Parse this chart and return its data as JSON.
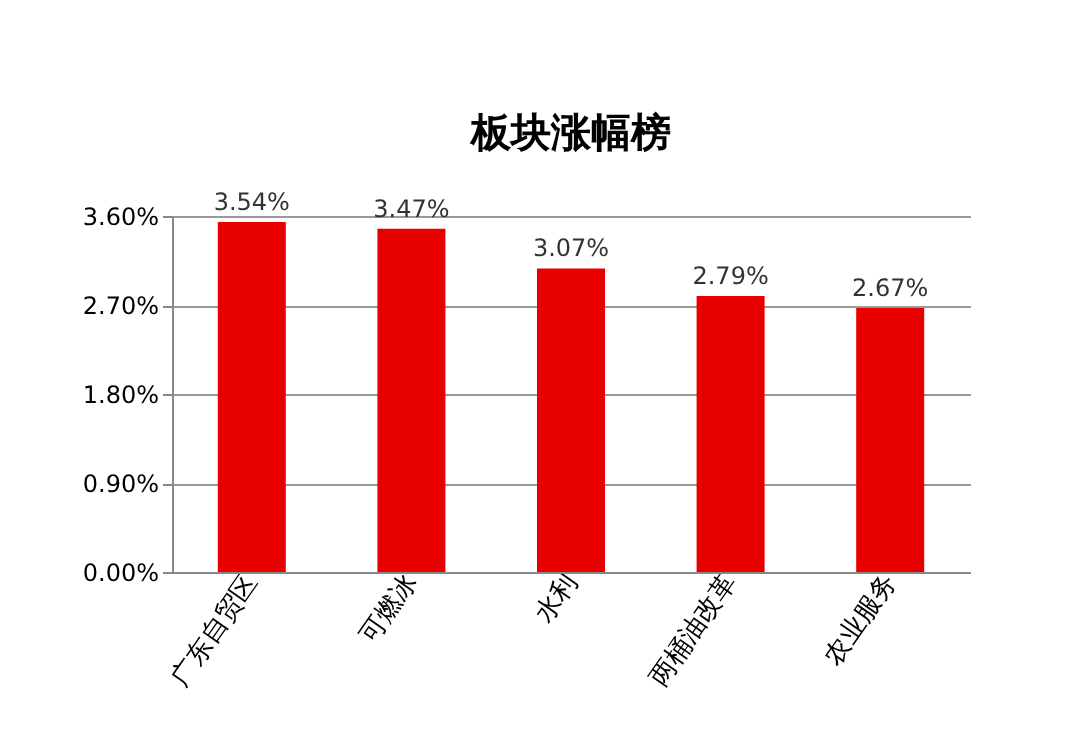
{
  "chart_data": {
    "type": "bar",
    "title": "板块涨幅榜",
    "categories": [
      "广东自贸区",
      "可燃冰",
      "水利",
      "两桶油改革",
      "农业服务"
    ],
    "values": [
      3.54,
      3.47,
      3.07,
      2.79,
      2.67
    ],
    "value_labels": [
      "3.54%",
      "3.47%",
      "3.07%",
      "2.79%",
      "2.67%"
    ],
    "color": "#e80000",
    "ylim": [
      0,
      3.6
    ],
    "yticks": [
      {
        "value": 0,
        "label": "0.00%"
      },
      {
        "value": 0.9,
        "label": "0.90%"
      },
      {
        "value": 1.8,
        "label": "1.80%"
      },
      {
        "value": 2.7,
        "label": "2.70%"
      },
      {
        "value": 3.6,
        "label": "3.60%"
      }
    ],
    "grid": "y",
    "legend": false
  }
}
